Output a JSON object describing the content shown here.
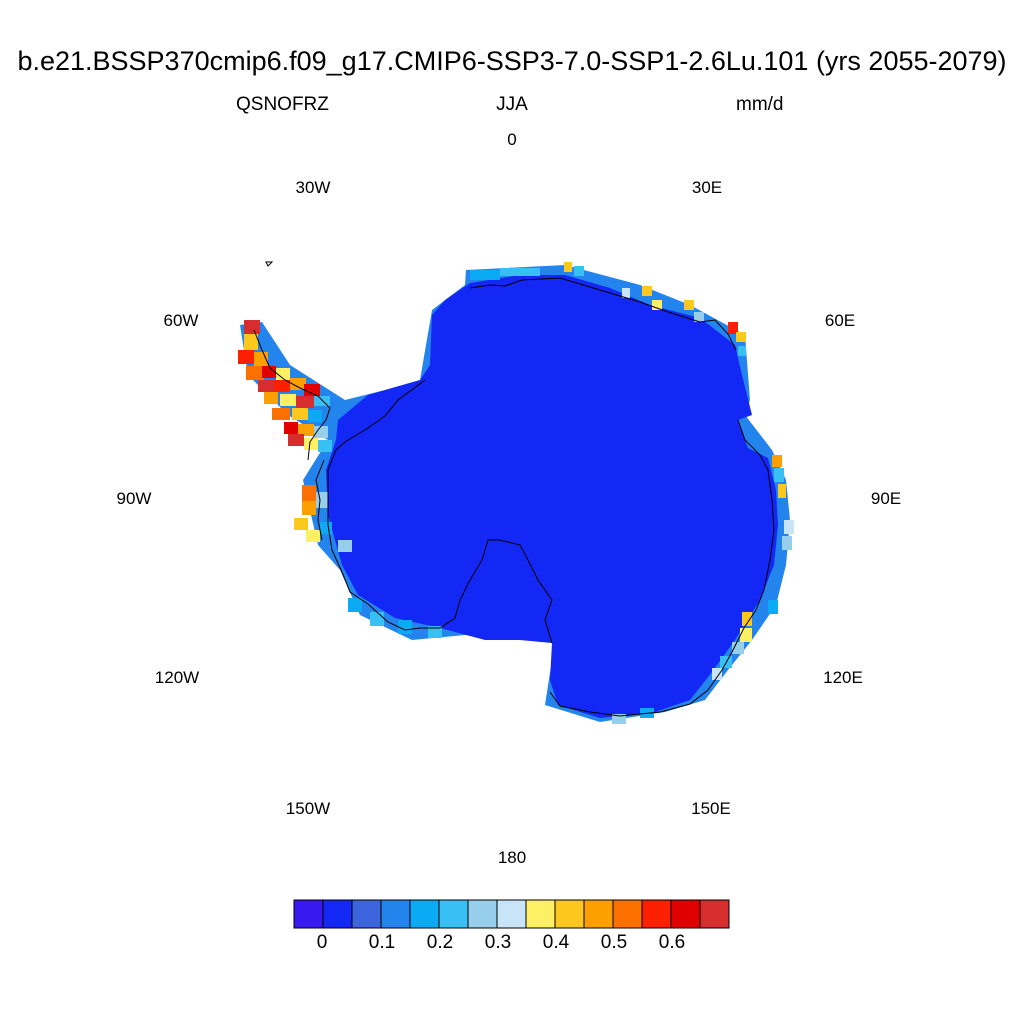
{
  "title": "b.e21.BSSP370cmip6.f09_g17.CMIP6-SSP3-7.0-SSP1-2.6Lu.101 (yrs 2055-2079)",
  "variable": "QSNOFRZ",
  "season": "JJA",
  "units": "mm/d",
  "longitude_labels": [
    {
      "id": "lon-0",
      "text": "0"
    },
    {
      "id": "lon-30e",
      "text": "30E"
    },
    {
      "id": "lon-60e",
      "text": "60E"
    },
    {
      "id": "lon-90e",
      "text": "90E"
    },
    {
      "id": "lon-120e",
      "text": "120E"
    },
    {
      "id": "lon-150e",
      "text": "150E"
    },
    {
      "id": "lon-180",
      "text": "180"
    },
    {
      "id": "lon-150w",
      "text": "150W"
    },
    {
      "id": "lon-120w",
      "text": "120W"
    },
    {
      "id": "lon-90w",
      "text": "90W"
    },
    {
      "id": "lon-60w",
      "text": "60W"
    },
    {
      "id": "lon-30w",
      "text": "30W"
    }
  ],
  "colorbar": {
    "colors": [
      "#3a18f0",
      "#1428f5",
      "#3c64dc",
      "#2484ee",
      "#0aaaf5",
      "#38c0f5",
      "#96ceec",
      "#c8e4f6",
      "#fef064",
      "#fcc81e",
      "#fca000",
      "#fc7000",
      "#fc2000",
      "#e00000",
      "#d62e2e"
    ],
    "tick_labels": [
      "0",
      "0.1",
      "0.2",
      "0.3",
      "0.4",
      "0.5",
      "0.6"
    ]
  },
  "map": {
    "projection": "south polar stereographic",
    "dominant_color": "#1428f5",
    "coast_color": "#000000"
  }
}
